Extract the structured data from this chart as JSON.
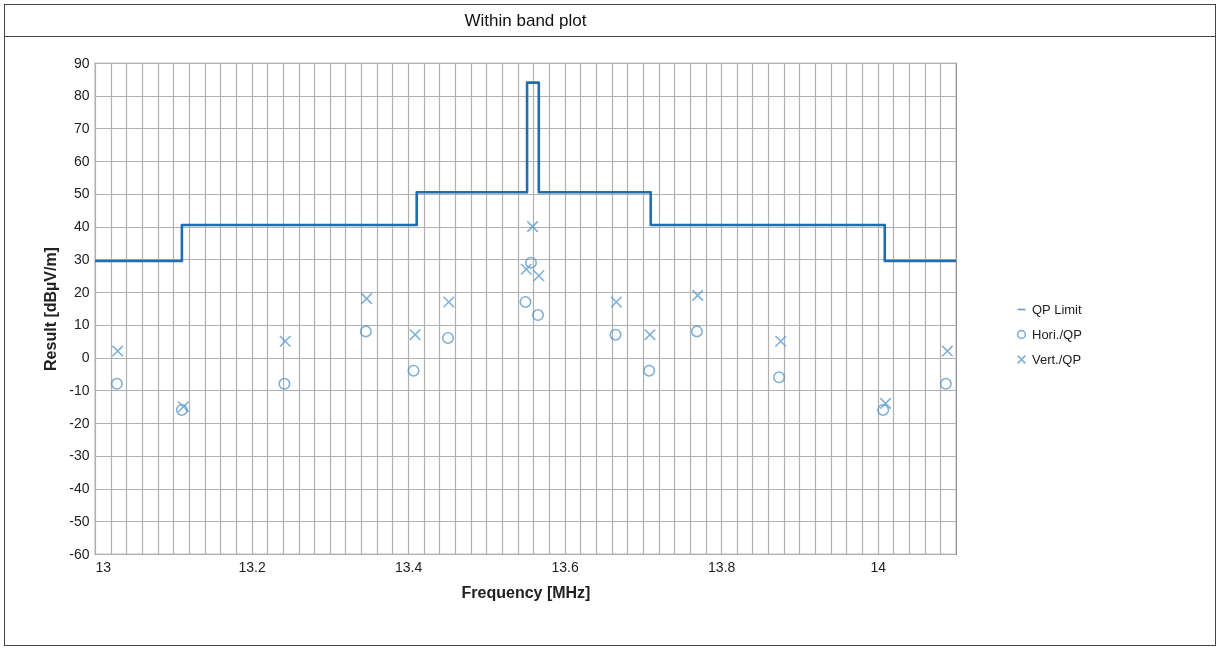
{
  "chart_data": {
    "type": "scatter",
    "title": "Within band plot",
    "xlabel": "Frequency [MHz]",
    "ylabel": "Result [dBµV/m]",
    "xlim": [
      13,
      14.1
    ],
    "ylim": [
      -60,
      90
    ],
    "xticks": [
      13,
      {
        "value": 13.02,
        "label": null
      },
      {
        "value": 13.04,
        "label": null
      },
      {
        "value": 13.06,
        "label": null
      },
      {
        "value": 13.08,
        "label": null
      },
      {
        "value": 13.1,
        "label": null
      },
      {
        "value": 13.12,
        "label": null
      },
      {
        "value": 13.14,
        "label": null
      },
      {
        "value": 13.16,
        "label": null
      },
      {
        "value": 13.18,
        "label": null
      },
      13.2,
      {
        "value": 13.22,
        "label": null
      },
      {
        "value": 13.24,
        "label": null
      },
      {
        "value": 13.26,
        "label": null
      },
      {
        "value": 13.28,
        "label": null
      },
      {
        "value": 13.3,
        "label": null
      },
      {
        "value": 13.32,
        "label": null
      },
      {
        "value": 13.34,
        "label": null
      },
      {
        "value": 13.36,
        "label": null
      },
      {
        "value": 13.38,
        "label": null
      },
      13.4,
      {
        "value": 13.42,
        "label": null
      },
      {
        "value": 13.44,
        "label": null
      },
      {
        "value": 13.46,
        "label": null
      },
      {
        "value": 13.48,
        "label": null
      },
      {
        "value": 13.5,
        "label": null
      },
      {
        "value": 13.52,
        "label": null
      },
      {
        "value": 13.54,
        "label": null
      },
      {
        "value": 13.56,
        "label": null
      },
      {
        "value": 13.58,
        "label": null
      },
      13.6,
      {
        "value": 13.62,
        "label": null
      },
      {
        "value": 13.64,
        "label": null
      },
      {
        "value": 13.66,
        "label": null
      },
      {
        "value": 13.68,
        "label": null
      },
      {
        "value": 13.7,
        "label": null
      },
      {
        "value": 13.72,
        "label": null
      },
      {
        "value": 13.74,
        "label": null
      },
      {
        "value": 13.76,
        "label": null
      },
      {
        "value": 13.78,
        "label": null
      },
      13.8,
      {
        "value": 13.82,
        "label": null
      },
      {
        "value": 13.84,
        "label": null
      },
      {
        "value": 13.86,
        "label": null
      },
      {
        "value": 13.88,
        "label": null
      },
      {
        "value": 13.9,
        "label": null
      },
      {
        "value": 13.92,
        "label": null
      },
      {
        "value": 13.94,
        "label": null
      },
      {
        "value": 13.96,
        "label": null
      },
      {
        "value": 13.98,
        "label": null
      },
      14,
      {
        "value": 14.02,
        "label": null
      },
      {
        "value": 14.04,
        "label": null
      },
      {
        "value": 14.06,
        "label": null
      },
      {
        "value": 14.08,
        "label": null
      }
    ],
    "yticks": [
      -60,
      -50,
      -40,
      -30,
      -20,
      -10,
      0,
      10,
      20,
      30,
      40,
      50,
      60,
      70,
      80,
      90
    ],
    "grid": true,
    "legend": "right",
    "series": [
      {
        "name": "QP Limit",
        "type": "step",
        "color": "#1f6db5",
        "marker": "none",
        "x": [
          13,
          13.111,
          13.411,
          13.552,
          13.567,
          13.71,
          14.009,
          14.1
        ],
        "values": [
          29.5,
          40.5,
          50.5,
          84,
          50.5,
          40.5,
          29.5,
          29.5
        ]
      },
      {
        "name": "Hori./QP",
        "type": "scatter",
        "color": "#4a90c8",
        "marker": "circle",
        "x": [
          13.028,
          13.111,
          13.242,
          13.346,
          13.407,
          13.451,
          13.55,
          13.557,
          13.566,
          13.665,
          13.708,
          13.769,
          13.874,
          14.007,
          14.087
        ],
        "values": [
          -8,
          -16,
          -8,
          8,
          -4,
          6,
          17,
          29,
          13,
          7,
          -4,
          8,
          -6,
          -16,
          -8
        ]
      },
      {
        "name": "Vert./QP",
        "type": "scatter",
        "color": "#4a90c8",
        "marker": "cross",
        "x": [
          13.029,
          13.113,
          13.243,
          13.347,
          13.409,
          13.452,
          13.551,
          13.559,
          13.567,
          13.666,
          13.709,
          13.77,
          13.876,
          14.01,
          14.089
        ],
        "values": [
          2,
          -15,
          5,
          18,
          7,
          17,
          27,
          40,
          25,
          17,
          7,
          19,
          5,
          -14,
          2
        ]
      }
    ]
  }
}
